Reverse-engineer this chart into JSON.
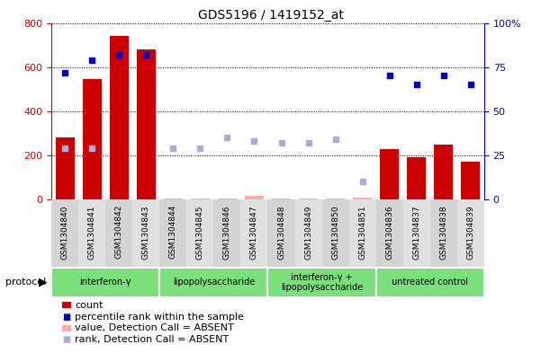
{
  "title": "GDS5196 / 1419152_at",
  "samples": [
    "GSM1304840",
    "GSM1304841",
    "GSM1304842",
    "GSM1304843",
    "GSM1304844",
    "GSM1304845",
    "GSM1304846",
    "GSM1304847",
    "GSM1304848",
    "GSM1304849",
    "GSM1304850",
    "GSM1304851",
    "GSM1304836",
    "GSM1304837",
    "GSM1304838",
    "GSM1304839"
  ],
  "counts": [
    280,
    545,
    740,
    680,
    5,
    5,
    5,
    15,
    5,
    5,
    5,
    10,
    230,
    190,
    248,
    170
  ],
  "counts_absent": [
    false,
    false,
    false,
    false,
    true,
    true,
    true,
    true,
    true,
    true,
    true,
    true,
    false,
    false,
    false,
    false
  ],
  "percentile": [
    72,
    79,
    82,
    82,
    null,
    null,
    null,
    null,
    null,
    null,
    null,
    null,
    70,
    65,
    70,
    65
  ],
  "percentile_absent": [
    29,
    29,
    null,
    null,
    29,
    29,
    35,
    33,
    32,
    32,
    34,
    null,
    null,
    null,
    null,
    null
  ],
  "percentile_absent2": [
    null,
    null,
    null,
    null,
    null,
    null,
    null,
    null,
    null,
    null,
    null,
    10,
    null,
    null,
    null,
    null
  ],
  "groups": [
    {
      "label": "interferon-γ",
      "start": 0,
      "end": 3
    },
    {
      "label": "lipopolysaccharide",
      "start": 4,
      "end": 7
    },
    {
      "label": "interferon-γ +\nlipopolysaccharide",
      "start": 8,
      "end": 11
    },
    {
      "label": "untreated control",
      "start": 12,
      "end": 15
    }
  ],
  "ylim_left": [
    0,
    800
  ],
  "ylim_right": [
    0,
    100
  ],
  "yticks_left": [
    0,
    200,
    400,
    600,
    800
  ],
  "yticks_right": [
    0,
    25,
    50,
    75,
    100
  ],
  "bar_color_present": "#cc0000",
  "bar_color_absent": "#ffaaaa",
  "dot_color_present": "#0000cc",
  "dot_color_absent": "#aaaadd",
  "col_bg_even": "#d4d4d4",
  "col_bg_odd": "#e0e0e0",
  "group_color": "#7be07b",
  "group_edgecolor": "#ffffff"
}
